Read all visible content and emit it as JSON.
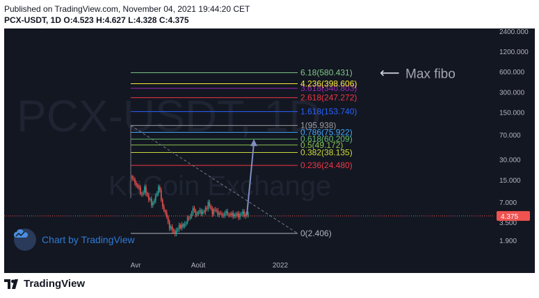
{
  "header": {
    "published": "Published on TradingView.com, November 04, 2021 19:44:20 CET",
    "symbol": "PCX-USDT, 1D",
    "o_label": "O:",
    "o_value": "4.523",
    "h_label": "H:",
    "h_value": "4.627",
    "l_label": "L:",
    "l_value": "4.328",
    "c_label": "C:",
    "c_value": "4.375"
  },
  "watermark": {
    "symbol_text": "PCX-USDT, 1D",
    "exchange_text": "KuCoin Exchange",
    "badge_text": "Chart by TradingView"
  },
  "annotation": {
    "text": "Max fibo",
    "arrow_glyph": "⟵"
  },
  "footer": {
    "brand": "TradingView"
  },
  "colors": {
    "background": "#131722",
    "candle_up": "#26a69a",
    "candle_down": "#ef5350",
    "axis_text": "#b2b5be",
    "price_line": "#ef5350",
    "arrow": "#7f8fbf"
  },
  "chart_data": {
    "type": "candlestick",
    "y_scale": "log",
    "x_tick_labels": [
      "Avr",
      "Août",
      "2022"
    ],
    "y_tick_labels": [
      "2400.000",
      "1200.000",
      "600.000",
      "300.000",
      "150.000",
      "70.000",
      "30.000",
      "15.000",
      "7.000",
      "3.500",
      "1.900"
    ],
    "y_tick_values": [
      2400,
      1200,
      600,
      300,
      150,
      70,
      30,
      15,
      7,
      3.5,
      1.9
    ],
    "last_price": "4.375",
    "last_price_value": 4.375,
    "ohlc_last": {
      "open": 4.523,
      "high": 4.627,
      "low": 4.328,
      "close": 4.375
    },
    "fib_levels": [
      {
        "ratio": "0",
        "label": "0(2.406)",
        "price": 2.406,
        "color": "#b2b5be"
      },
      {
        "ratio": "0.236",
        "label": "0.236(24.480)",
        "price": 24.48,
        "color": "#f23645"
      },
      {
        "ratio": "0.382",
        "label": "0.382(38.135)",
        "price": 38.135,
        "color": "#cddc39"
      },
      {
        "ratio": "0.5",
        "label": "0.5(49.172)",
        "price": 49.172,
        "color": "#8bc34a"
      },
      {
        "ratio": "0.618",
        "label": "0.618(60.209)",
        "price": 60.209,
        "color": "#66bb6a"
      },
      {
        "ratio": "0.786",
        "label": "0.786(75.922)",
        "price": 75.922,
        "color": "#42a5f5"
      },
      {
        "ratio": "1",
        "label": "1(95.938)",
        "price": 95.938,
        "color": "#9e9e9e"
      },
      {
        "ratio": "1.618",
        "label": "1.618(153.740)",
        "price": 153.74,
        "color": "#2962ff"
      },
      {
        "ratio": "2.618",
        "label": "2.618(247.272)",
        "price": 247.272,
        "color": "#f23645"
      },
      {
        "ratio": "3.618",
        "label": "3.618(340.803)",
        "price": 340.803,
        "color": "#9c27b0"
      },
      {
        "ratio": "4.236",
        "label": "4.236(398.606)",
        "price": 398.606,
        "color": "#ffeb3b"
      },
      {
        "ratio": "6.18",
        "label": "6.18(580.431)",
        "price": 580.431,
        "color": "#81c784"
      }
    ],
    "price_path": [
      [
        0.0,
        17
      ],
      [
        0.03,
        14
      ],
      [
        0.06,
        12
      ],
      [
        0.09,
        9
      ],
      [
        0.12,
        11
      ],
      [
        0.15,
        8
      ],
      [
        0.18,
        6.5
      ],
      [
        0.21,
        8
      ],
      [
        0.24,
        13
      ],
      [
        0.26,
        7
      ],
      [
        0.29,
        5
      ],
      [
        0.31,
        4
      ],
      [
        0.33,
        3
      ],
      [
        0.36,
        2.6
      ],
      [
        0.39,
        2.5
      ],
      [
        0.41,
        3.2
      ],
      [
        0.44,
        3.0
      ],
      [
        0.47,
        3.6
      ],
      [
        0.5,
        4.2
      ],
      [
        0.53,
        5.5
      ],
      [
        0.56,
        4.6
      ],
      [
        0.59,
        5.2
      ],
      [
        0.62,
        4.8
      ],
      [
        0.66,
        6.8
      ],
      [
        0.69,
        5.0
      ],
      [
        0.72,
        5.4
      ],
      [
        0.75,
        4.7
      ],
      [
        0.78,
        4.5
      ],
      [
        0.81,
        4.9
      ],
      [
        0.85,
        4.5
      ],
      [
        0.88,
        4.6
      ],
      [
        0.91,
        4.4
      ],
      [
        0.95,
        4.8
      ],
      [
        1.0,
        4.375
      ]
    ],
    "projection_arrow": {
      "from": 4.6,
      "to": 60.209
    },
    "trendline": {
      "from": 95.938,
      "to": 2.406
    }
  }
}
